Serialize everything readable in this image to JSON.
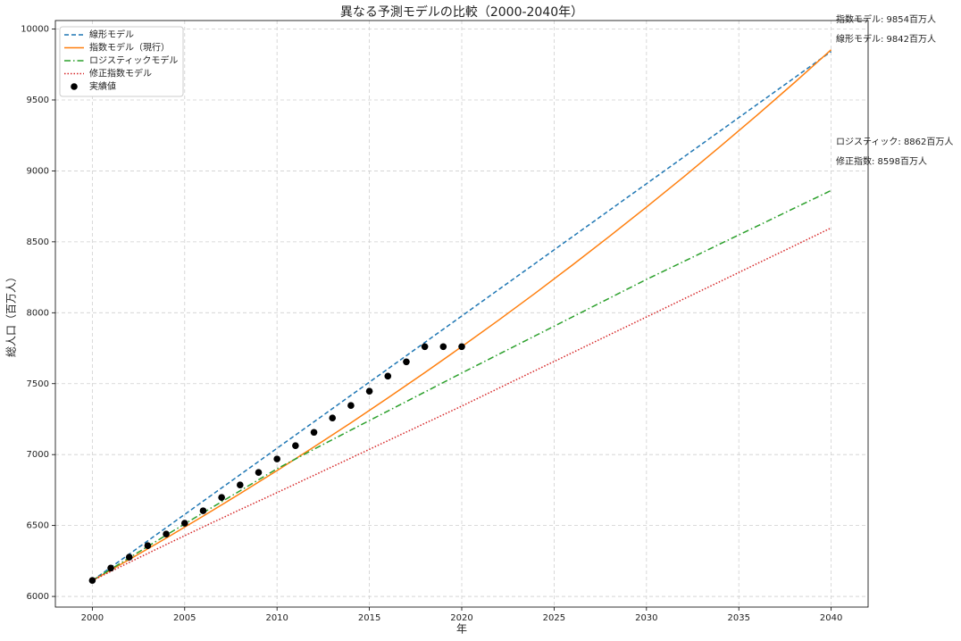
{
  "chart_data": {
    "type": "line",
    "title": "異なる予測モデルの比較（2000-2040年）",
    "x_label": "年",
    "y_label": "総人口（百万人）",
    "xlim": [
      1998,
      2042
    ],
    "ylim": [
      5925,
      10060
    ],
    "xticks": [
      2000,
      2005,
      2010,
      2015,
      2020,
      2025,
      2030,
      2035,
      2040
    ],
    "yticks": [
      6000,
      6500,
      7000,
      7500,
      8000,
      8500,
      9000,
      9500,
      10000
    ],
    "grid": true,
    "legend": "upper-left",
    "series": [
      {
        "name": "線形モデル",
        "color": "#1f77b4",
        "style": "dashed",
        "x": [
          2000,
          2002,
          2004,
          2006,
          2008,
          2010,
          2012,
          2014,
          2016,
          2018,
          2020,
          2022,
          2024,
          2026,
          2028,
          2030,
          2032,
          2034,
          2036,
          2038,
          2040
        ],
        "values": [
          6112,
          6298.5,
          6485,
          6671.5,
          6858,
          7044.5,
          7231,
          7417.5,
          7604,
          7790.5,
          7977,
          8163.5,
          8350,
          8536.5,
          8723,
          8909.5,
          9096,
          9282.5,
          9469,
          9655.5,
          9842
        ]
      },
      {
        "name": "指数モデル（現行）",
        "color": "#ff7f0e",
        "style": "solid",
        "x": [
          2000,
          2002,
          2004,
          2006,
          2008,
          2010,
          2012,
          2014,
          2016,
          2018,
          2020,
          2022,
          2024,
          2026,
          2028,
          2030,
          2032,
          2034,
          2036,
          2038,
          2040
        ],
        "values": [
          6112,
          6260,
          6411,
          6566,
          6725,
          6887,
          7054,
          7224,
          7399,
          7578,
          7761,
          7948,
          8140,
          8337,
          8539,
          8745,
          8956,
          9173,
          9394,
          9621,
          9854
        ]
      },
      {
        "name": "ロジスティックモデル",
        "color": "#2ca02c",
        "style": "dashdot",
        "x": [
          2000,
          2002,
          2004,
          2006,
          2008,
          2010,
          2012,
          2014,
          2016,
          2018,
          2020,
          2022,
          2024,
          2026,
          2028,
          2030,
          2032,
          2034,
          2036,
          2038,
          2040
        ],
        "values": [
          6112,
          6272,
          6432,
          6590,
          6745,
          6900,
          7038,
          7173,
          7307,
          7441,
          7575,
          7707,
          7839,
          7971,
          8103,
          8235,
          8360,
          8486,
          8611,
          8737,
          8862
        ]
      },
      {
        "name": "修正指数モデル",
        "color": "#d62728",
        "style": "dotted",
        "x": [
          2000,
          2002,
          2004,
          2006,
          2008,
          2010,
          2012,
          2014,
          2016,
          2018,
          2020,
          2022,
          2024,
          2026,
          2028,
          2030,
          2032,
          2034,
          2036,
          2038,
          2040
        ],
        "values": [
          6112,
          6240,
          6366,
          6490,
          6612,
          6732,
          6854,
          6976,
          7098,
          7220,
          7342,
          7468,
          7594,
          7719,
          7845,
          7970,
          8096,
          8221,
          8347,
          8472,
          8598
        ]
      },
      {
        "name": "実績値",
        "color": "#000000",
        "kind": "scatter",
        "x": [
          2000,
          2001,
          2002,
          2003,
          2004,
          2005,
          2006,
          2007,
          2008,
          2009,
          2010,
          2011,
          2012,
          2013,
          2014,
          2015,
          2016,
          2017,
          2018,
          2019,
          2020
        ],
        "values": [
          6113,
          6200,
          6277,
          6358,
          6440,
          6516,
          6604,
          6698,
          6786,
          6874,
          6969,
          7063,
          7157,
          7258,
          7346,
          7447,
          7553,
          7654,
          7761,
          7761,
          7761
        ]
      }
    ],
    "annotations": [
      "指数モデル: 9854百万人",
      "線形モデル: 9842百万人",
      "ロジスティック: 8862百万人",
      "修正指数: 8598百万人"
    ]
  }
}
